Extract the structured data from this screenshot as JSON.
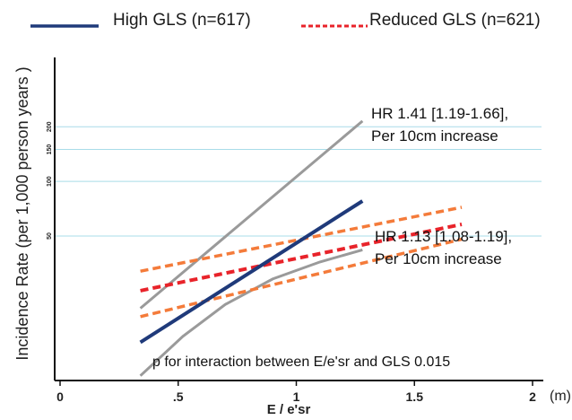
{
  "chart_data": {
    "type": "line",
    "xlabel": "E / e'sr",
    "x_unit": "(m)",
    "ylabel": "Incidence Rate (per 1,000 person years )",
    "x_ticks": [
      {
        "value": 0,
        "label": "0"
      },
      {
        "value": 0.5,
        "label": ".5"
      },
      {
        "value": 1,
        "label": "1"
      },
      {
        "value": 1.5,
        "label": "1.5"
      },
      {
        "value": 2,
        "label": "2"
      }
    ],
    "xlim": [
      0,
      2
    ],
    "y_scale": "log",
    "y_ticks": [
      {
        "value": 50,
        "label": "50"
      },
      {
        "value": 100,
        "label": "100"
      },
      {
        "value": 150,
        "label": "150"
      },
      {
        "value": 200,
        "label": "200"
      }
    ],
    "ylim": [
      8,
      320
    ],
    "grid": {
      "horizontal": true,
      "vertical": false,
      "color": "#a8dce8"
    },
    "legend": {
      "placement": "top",
      "entries": [
        {
          "label": "High GLS (n=617)",
          "color": "#1f3a7a",
          "style": "solid"
        },
        {
          "label": "Reduced GLS (n=621)",
          "color": "#e8232a",
          "style": "dashed"
        }
      ]
    },
    "series": [
      {
        "name": "High GLS (n=617)",
        "color": "#1f3a7a",
        "line": [
          [
            0.34,
            13
          ],
          [
            1.28,
            78
          ]
        ],
        "ci_lower": [
          [
            0.34,
            8.5
          ],
          [
            0.52,
            14
          ],
          [
            0.7,
            21
          ],
          [
            0.9,
            29
          ],
          [
            1.1,
            36
          ],
          [
            1.28,
            42
          ]
        ],
        "ci_upper": [
          [
            0.34,
            20
          ],
          [
            1.28,
            215
          ]
        ]
      },
      {
        "name": "Reduced GLS (n=621)",
        "color": "#e8232a",
        "ci_color": "#f47b3a",
        "line": [
          [
            0.34,
            25
          ],
          [
            1.7,
            58
          ]
        ],
        "ci_lower": [
          [
            0.34,
            18
          ],
          [
            1.7,
            48
          ]
        ],
        "ci_upper": [
          [
            0.34,
            32
          ],
          [
            1.7,
            72
          ]
        ]
      }
    ],
    "annotations": {
      "hr_high_line1": "HR 1.41 [1.19-1.66],",
      "hr_high_line2": "Per 10cm increase",
      "hr_reduced_line1": "HR 1.13 [1.08-1.19],",
      "hr_reduced_line2": "Per 10cm increase",
      "interaction": "p for interaction between E/e'sr and GLS 0.015"
    }
  }
}
